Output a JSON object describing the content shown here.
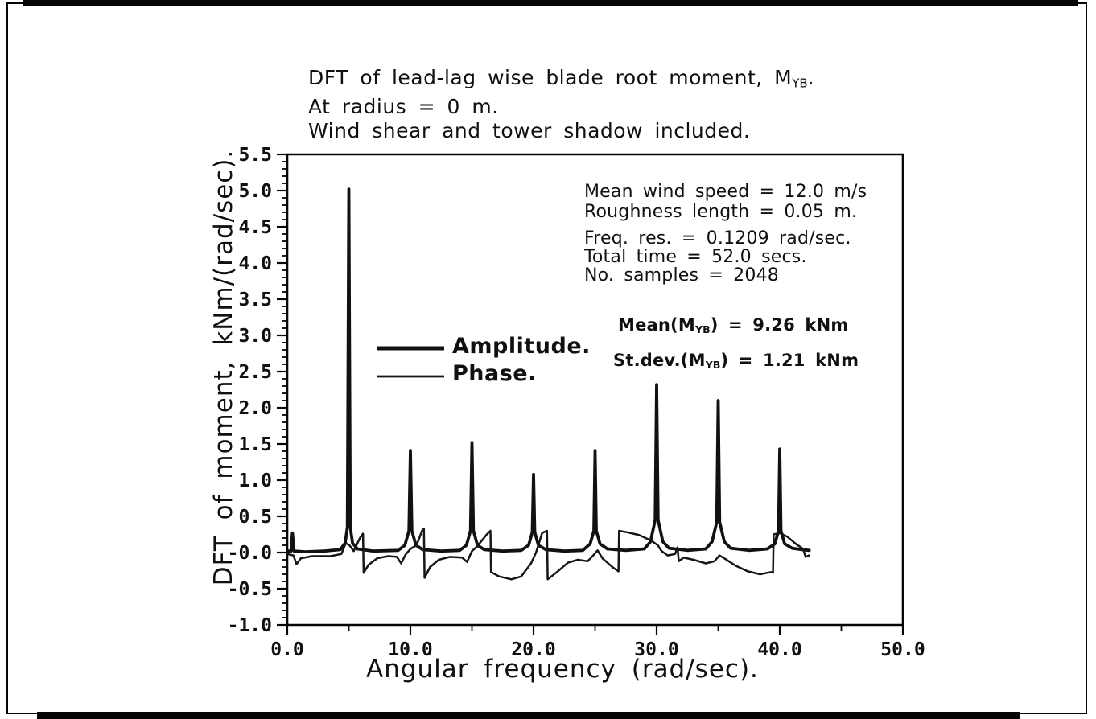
{
  "title": {
    "line1_prefix": "DFT of lead-lag wise blade root moment, M",
    "line1_sub": "YB",
    "line1_suffix": ".",
    "line2": "At radius = 0 m.",
    "line3": "Wind shear and tower shadow included."
  },
  "annotations": {
    "wind_block": {
      "line1": "Mean wind speed = 12.0 m/s",
      "line2": "Roughness length = 0.05 m."
    },
    "dft_block": {
      "line1": "Freq. res. = 0.1209 rad/sec.",
      "line2": "Total time = 52.0 secs.",
      "line3": "No. samples = 2048"
    },
    "mean": {
      "prefix": "Mean(M",
      "sub": "YB",
      "suffix": ") = 9.26 kNm"
    },
    "stdev": {
      "prefix": "St.dev.(M",
      "sub": "YB",
      "suffix": ") = 1.21 kNm"
    }
  },
  "legend": {
    "position": "inside-left",
    "items": [
      {
        "label": "Amplitude.",
        "style": "thick-solid"
      },
      {
        "label": "Phase.",
        "style": "thin-solid"
      }
    ]
  },
  "chart_data": {
    "type": "line",
    "title": "DFT of lead-lag wise blade root moment, MYB. At radius = 0 m. Wind shear and tower shadow included.",
    "xlabel": "Angular frequency (rad/sec).",
    "ylabel": "DFT of moment, kNm/(rad/sec).",
    "xlim": [
      0,
      50
    ],
    "ylim": [
      -1.0,
      5.5
    ],
    "grid": false,
    "x_ticks": [
      {
        "v": 0,
        "label": "0.0"
      },
      {
        "v": 10,
        "label": "10.0"
      },
      {
        "v": 20,
        "label": "20.0"
      },
      {
        "v": 30,
        "label": "30.0"
      },
      {
        "v": 40,
        "label": "40.0"
      },
      {
        "v": 50,
        "label": "50.0"
      }
    ],
    "x_minor_tick_step": 5,
    "y_ticks": [
      {
        "v": 5.5,
        "label": "5.5"
      },
      {
        "v": 5.0,
        "label": "5.0"
      },
      {
        "v": 4.5,
        "label": "4.5"
      },
      {
        "v": 4.0,
        "label": "4.0"
      },
      {
        "v": 3.5,
        "label": "3.5"
      },
      {
        "v": 3.0,
        "label": "3.0"
      },
      {
        "v": 2.5,
        "label": "2.5"
      },
      {
        "v": 2.0,
        "label": "2.0"
      },
      {
        "v": 1.5,
        "label": "1.5"
      },
      {
        "v": 1.0,
        "label": "1.0"
      },
      {
        "v": 0.5,
        "label": "0.5"
      },
      {
        "v": 0.0,
        "label": "-0.0"
      },
      {
        "v": -0.5,
        "label": "-0.5"
      },
      {
        "v": -1.0,
        "label": "-1.0"
      }
    ],
    "y_minor_tick_step": 0.1,
    "amplitude_peaks": [
      {
        "x": 5.0,
        "value": 5.02
      },
      {
        "x": 10.0,
        "value": 1.41
      },
      {
        "x": 15.0,
        "value": 1.52
      },
      {
        "x": 20.0,
        "value": 1.08
      },
      {
        "x": 25.0,
        "value": 1.41
      },
      {
        "x": 30.0,
        "value": 2.32
      },
      {
        "x": 35.0,
        "value": 2.1
      },
      {
        "x": 40.0,
        "value": 1.43
      }
    ],
    "series": [
      {
        "name": "Amplitude.",
        "points": [
          [
            0,
            0.02
          ],
          [
            0.3,
            0.02
          ],
          [
            0.42,
            0.27
          ],
          [
            0.55,
            0.02
          ],
          [
            1.5,
            0.01
          ],
          [
            3,
            0.02
          ],
          [
            4.3,
            0.04
          ],
          [
            4.7,
            0.13
          ],
          [
            4.88,
            0.35
          ],
          [
            5,
            5.02
          ],
          [
            5.12,
            0.35
          ],
          [
            5.3,
            0.13
          ],
          [
            5.7,
            0.05
          ],
          [
            7,
            0.02
          ],
          [
            9,
            0.03
          ],
          [
            9.55,
            0.1
          ],
          [
            9.88,
            0.3
          ],
          [
            10,
            1.41
          ],
          [
            10.12,
            0.3
          ],
          [
            10.45,
            0.1
          ],
          [
            11,
            0.04
          ],
          [
            12.5,
            0.02
          ],
          [
            14,
            0.03
          ],
          [
            14.55,
            0.1
          ],
          [
            14.88,
            0.3
          ],
          [
            15,
            1.52
          ],
          [
            15.12,
            0.3
          ],
          [
            15.45,
            0.1
          ],
          [
            16,
            0.04
          ],
          [
            17.5,
            0.02
          ],
          [
            19,
            0.03
          ],
          [
            19.6,
            0.1
          ],
          [
            19.9,
            0.28
          ],
          [
            20,
            1.08
          ],
          [
            20.1,
            0.28
          ],
          [
            20.4,
            0.1
          ],
          [
            21,
            0.04
          ],
          [
            22.5,
            0.02
          ],
          [
            24,
            0.03
          ],
          [
            24.6,
            0.12
          ],
          [
            24.9,
            0.3
          ],
          [
            25,
            1.41
          ],
          [
            25.1,
            0.3
          ],
          [
            25.4,
            0.12
          ],
          [
            26,
            0.05
          ],
          [
            27.5,
            0.03
          ],
          [
            29,
            0.05
          ],
          [
            29.5,
            0.15
          ],
          [
            29.88,
            0.45
          ],
          [
            30,
            2.32
          ],
          [
            30.12,
            0.45
          ],
          [
            30.5,
            0.15
          ],
          [
            31,
            0.06
          ],
          [
            32.5,
            0.03
          ],
          [
            34,
            0.05
          ],
          [
            34.5,
            0.15
          ],
          [
            34.88,
            0.42
          ],
          [
            35,
            2.1
          ],
          [
            35.12,
            0.42
          ],
          [
            35.5,
            0.15
          ],
          [
            36,
            0.06
          ],
          [
            37.5,
            0.03
          ],
          [
            39,
            0.05
          ],
          [
            39.6,
            0.12
          ],
          [
            39.9,
            0.3
          ],
          [
            40,
            1.43
          ],
          [
            40.1,
            0.3
          ],
          [
            40.4,
            0.12
          ],
          [
            41,
            0.06
          ],
          [
            41.8,
            0.04
          ],
          [
            42.4,
            0.03
          ]
        ]
      },
      {
        "name": "Phase.",
        "points": [
          [
            0,
            -0.02
          ],
          [
            0.5,
            -0.04
          ],
          [
            0.75,
            -0.16
          ],
          [
            1.1,
            -0.08
          ],
          [
            2,
            -0.05
          ],
          [
            3.5,
            -0.05
          ],
          [
            4.4,
            -0.02
          ],
          [
            4.75,
            0.13
          ],
          [
            5.05,
            0.1
          ],
          [
            5.4,
            0.02
          ],
          [
            5.9,
            0.2
          ],
          [
            6.15,
            0.26
          ],
          [
            6.2,
            -0.28
          ],
          [
            6.6,
            -0.17
          ],
          [
            7.3,
            -0.08
          ],
          [
            8.2,
            -0.05
          ],
          [
            8.9,
            -0.06
          ],
          [
            9.25,
            -0.15
          ],
          [
            9.6,
            -0.03
          ],
          [
            10,
            0.05
          ],
          [
            10.5,
            0.1
          ],
          [
            10.95,
            0.3
          ],
          [
            11.1,
            0.33
          ],
          [
            11.15,
            -0.35
          ],
          [
            11.6,
            -0.2
          ],
          [
            12.3,
            -0.1
          ],
          [
            13.2,
            -0.06
          ],
          [
            14.2,
            -0.07
          ],
          [
            14.6,
            -0.13
          ],
          [
            15,
            0.02
          ],
          [
            15.4,
            0.08
          ],
          [
            16.2,
            0.25
          ],
          [
            16.5,
            0.3
          ],
          [
            16.55,
            -0.27
          ],
          [
            17.2,
            -0.33
          ],
          [
            18.2,
            -0.37
          ],
          [
            19,
            -0.33
          ],
          [
            19.8,
            -0.15
          ],
          [
            20.2,
            0
          ],
          [
            20.7,
            0.27
          ],
          [
            21.1,
            0.3
          ],
          [
            21.15,
            -0.37
          ],
          [
            21.9,
            -0.27
          ],
          [
            22.8,
            -0.14
          ],
          [
            23.6,
            -0.1
          ],
          [
            24.4,
            -0.12
          ],
          [
            24.9,
            -0.03
          ],
          [
            25.2,
            0.03
          ],
          [
            25.6,
            -0.08
          ],
          [
            26.4,
            -0.2
          ],
          [
            26.9,
            -0.26
          ],
          [
            26.95,
            0.3
          ],
          [
            27.6,
            0.28
          ],
          [
            28.6,
            0.24
          ],
          [
            29.6,
            0.16
          ],
          [
            30.1,
            0.1
          ],
          [
            30.4,
            0.02
          ],
          [
            30.9,
            -0.04
          ],
          [
            31.5,
            -0.02
          ],
          [
            31.7,
            0.07
          ],
          [
            31.8,
            -0.12
          ],
          [
            32.2,
            -0.07
          ],
          [
            33,
            -0.1
          ],
          [
            34,
            -0.15
          ],
          [
            34.7,
            -0.12
          ],
          [
            35.1,
            -0.04
          ],
          [
            35.5,
            -0.08
          ],
          [
            36.4,
            -0.18
          ],
          [
            37.4,
            -0.26
          ],
          [
            38.4,
            -0.3
          ],
          [
            39.3,
            -0.27
          ],
          [
            39.45,
            -0.28
          ],
          [
            39.5,
            0.25
          ],
          [
            40,
            0.27
          ],
          [
            40.6,
            0.22
          ],
          [
            41.3,
            0.12
          ],
          [
            41.9,
            0.05
          ],
          [
            42.1,
            -0.06
          ],
          [
            42.4,
            -0.04
          ]
        ]
      }
    ]
  }
}
